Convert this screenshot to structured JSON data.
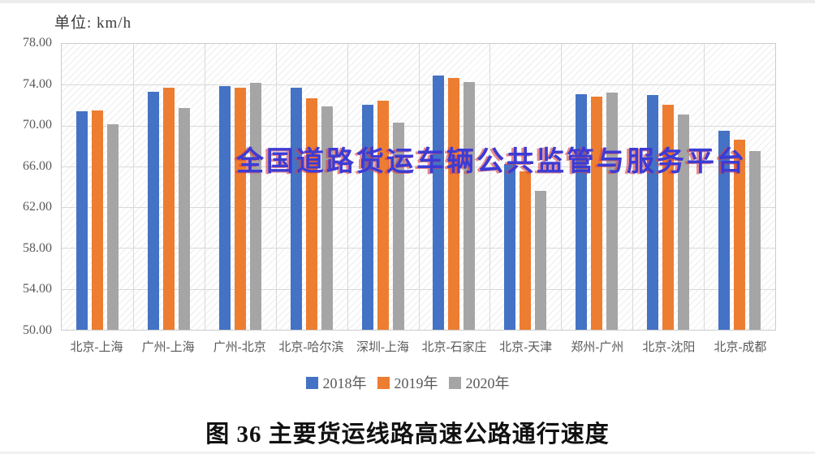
{
  "page": {
    "unit_label": "单位: km/h",
    "watermark_text": "全国道路货运车辆公共监管与服务平台",
    "caption": "图 36 主要货运线路高速公路通行速度"
  },
  "chart_data": {
    "type": "bar",
    "title": "图 36 主要货运线路高速公路通行速度",
    "unit": "km/h",
    "categories": [
      "北京-上海",
      "广州-上海",
      "广州-北京",
      "北京-哈尔滨",
      "深圳-上海",
      "北京-石家庄",
      "北京-天津",
      "郑州-广州",
      "北京-沈阳",
      "北京-成都"
    ],
    "series": [
      {
        "name": "2018年",
        "color": "#4472C4",
        "values": [
          71.4,
          73.3,
          73.9,
          73.7,
          72.0,
          74.9,
          66.2,
          73.1,
          73.0,
          69.5
        ]
      },
      {
        "name": "2019年",
        "color": "#ED7D31",
        "values": [
          71.5,
          73.7,
          73.7,
          72.7,
          72.4,
          74.7,
          65.5,
          72.8,
          72.0,
          68.6
        ]
      },
      {
        "name": "2020年",
        "color": "#A5A5A5",
        "values": [
          70.1,
          71.7,
          74.2,
          71.9,
          70.3,
          74.3,
          63.6,
          73.2,
          71.1,
          67.5
        ]
      }
    ],
    "ylim": [
      50,
      78
    ],
    "ytick_step": 4,
    "ytick_labels": [
      "78.00",
      "74.00",
      "70.00",
      "66.00",
      "62.00",
      "58.00",
      "54.00",
      "50.00"
    ],
    "grid": true,
    "legend_position": "bottom",
    "colors": {
      "grid": "#d9d9d9",
      "axis_text": "#595959",
      "plot_border": "#cccccc",
      "watermark": "#3b3bd6",
      "watermark_shadow": "#d84040",
      "caption_text": "#111111"
    }
  }
}
